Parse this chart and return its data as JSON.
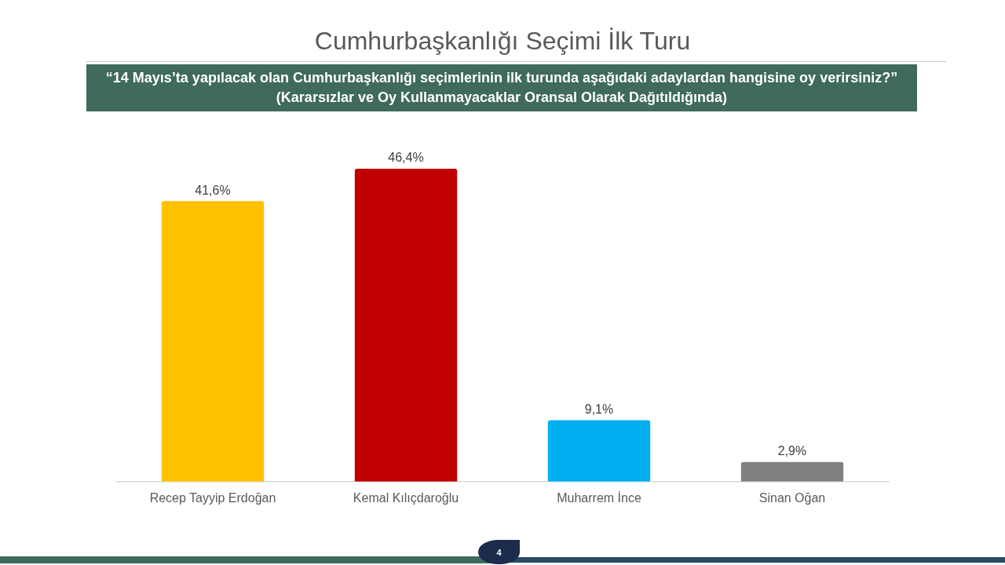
{
  "chart_data": {
    "type": "bar",
    "title": "Cumhurbaşkanlığı Seçimi İlk Turu",
    "subtitle": "“14 Mayıs’ta yapılacak olan Cumhurbaşkanlığı seçimlerinin ilk turunda aşağıdaki adaylardan hangisine oy verirsiniz?”\n(Kararsızlar ve Oy Kullanmayacaklar Oransal Olarak Dağıtıldığında)",
    "categories": [
      "Recep Tayyip Erdoğan",
      "Kemal Kılıçdaroğlu",
      "Muharrem İnce",
      "Sinan Oğan"
    ],
    "values": [
      41.6,
      46.4,
      9.1,
      2.9
    ],
    "colors": [
      "#ffc000",
      "#c00000",
      "#00b0f0",
      "#808080"
    ],
    "value_labels": [
      "41,6%",
      "46,4%",
      "9,1%",
      "2,9%"
    ],
    "annotations": [
      "4"
    ]
  }
}
